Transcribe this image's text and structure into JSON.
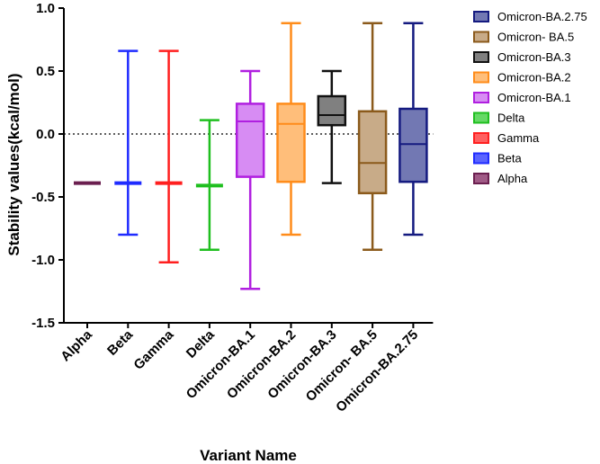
{
  "chart_data": {
    "type": "box",
    "xlabel": "Variant Name",
    "ylabel": "Stability values(kcal/mol)",
    "ylim": [
      -1.5,
      1.0
    ],
    "yticks": [
      "1.0",
      "0.5",
      "0.0",
      "-0.5",
      "-1.0",
      "-1.5"
    ],
    "reference_line": {
      "y": 0.0,
      "style": "dotted"
    },
    "categories": [
      "Alpha",
      "Beta",
      "Gamma",
      "Delta",
      "Omicron-BA.1",
      "Omicron-BA.2",
      "Omicron-BA.3",
      "Omicron- BA.5",
      "Omicron-BA.2.75"
    ],
    "series": [
      {
        "name": "Alpha",
        "color": "#6b1f4f",
        "fill": "#a05a86",
        "min": -0.39,
        "q1": -0.39,
        "median": -0.39,
        "q3": -0.39,
        "max": -0.39
      },
      {
        "name": "Beta",
        "color": "#1f2bff",
        "fill": "#5a64ff",
        "min": -0.8,
        "q1": -0.39,
        "median": -0.39,
        "q3": -0.39,
        "max": 0.66
      },
      {
        "name": "Gamma",
        "color": "#ff1f1f",
        "fill": "#ff6060",
        "min": -1.02,
        "q1": -0.39,
        "median": -0.39,
        "q3": -0.39,
        "max": 0.66
      },
      {
        "name": "Delta",
        "color": "#1fbf1f",
        "fill": "#66d966",
        "min": -0.92,
        "q1": -0.41,
        "median": -0.41,
        "q3": -0.41,
        "max": 0.11
      },
      {
        "name": "Omicron-BA.1",
        "color": "#b01fe0",
        "fill": "#d78cf3",
        "min": -1.23,
        "q1": -0.34,
        "median": 0.1,
        "q3": 0.24,
        "max": 0.5
      },
      {
        "name": "Omicron-BA.2",
        "color": "#ff8c1a",
        "fill": "#ffbe7a",
        "min": -0.8,
        "q1": -0.38,
        "median": 0.08,
        "q3": 0.24,
        "max": 0.88
      },
      {
        "name": "Omicron-BA.3",
        "color": "#111111",
        "fill": "#808080",
        "min": -0.39,
        "q1": 0.07,
        "median": 0.15,
        "q3": 0.3,
        "max": 0.5
      },
      {
        "name": "Omicron- BA.5",
        "color": "#8b5a1b",
        "fill": "#c8ab88",
        "min": -0.92,
        "q1": -0.47,
        "median": -0.23,
        "q3": 0.18,
        "max": 0.88
      },
      {
        "name": "Omicron-BA.2.75",
        "color": "#141a80",
        "fill": "#7278b3",
        "min": -0.8,
        "q1": -0.38,
        "median": -0.08,
        "q3": 0.2,
        "max": 0.88
      }
    ],
    "legend": {
      "placement": "right",
      "order": [
        "Omicron-BA.2.75",
        "Omicron- BA.5",
        "Omicron-BA.3",
        "Omicron-BA.2",
        "Omicron-BA.1",
        "Delta",
        "Gamma",
        "Beta",
        "Alpha"
      ]
    }
  }
}
